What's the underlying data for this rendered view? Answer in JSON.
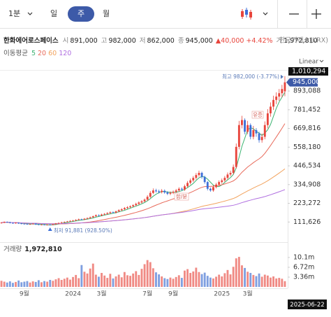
{
  "toolbar": {
    "intervals": [
      "1분",
      "일",
      "주",
      "월"
    ],
    "active": 2
  },
  "quote": {
    "name": "한화에어로스페이스",
    "items": [
      {
        "label": "시",
        "value": "891,000"
      },
      {
        "label": "고",
        "value": "982,000"
      },
      {
        "label": "저",
        "value": "862,000"
      },
      {
        "label": "종",
        "value": "945,000"
      }
    ],
    "change": "▲40,000",
    "change_pct": "+4.42%",
    "volume_label": "거",
    "volume": "1,972,810",
    "exchange": "한국거래소(KRX)"
  },
  "scale_mode": "Linear",
  "chart_data": {
    "type": "candlestick",
    "categories": [
      null,
      null,
      null,
      null,
      null,
      null,
      null,
      null,
      "9월",
      null,
      null,
      null,
      null,
      null,
      null,
      null,
      null,
      null,
      null,
      null,
      null,
      null,
      null,
      null,
      null,
      "2024",
      null,
      null,
      null,
      null,
      null,
      null,
      null,
      null,
      null,
      "3월",
      null,
      null,
      null,
      null,
      null,
      null,
      null,
      null,
      null,
      null,
      null,
      null,
      null,
      null,
      null,
      "7월",
      null,
      null,
      null,
      null,
      null,
      null,
      null,
      null,
      "9월",
      null,
      null,
      null,
      null,
      null,
      null,
      null,
      null,
      null,
      null,
      null,
      null,
      null,
      null,
      null,
      null,
      "2025",
      null,
      null,
      null,
      null,
      null,
      null,
      null,
      null,
      "3월",
      null,
      null,
      null,
      null,
      null,
      null,
      null,
      null,
      null,
      null,
      null,
      null,
      null
    ],
    "open": [
      105000,
      108000,
      112000,
      110000,
      106000,
      104000,
      107000,
      103000,
      101000,
      100000,
      98000,
      99000,
      102000,
      97000,
      95000,
      96000,
      93000,
      95000,
      94000,
      98000,
      103000,
      106000,
      110000,
      112000,
      115000,
      118000,
      120000,
      124000,
      128000,
      126000,
      131000,
      135000,
      140000,
      146000,
      152000,
      150000,
      156000,
      160000,
      165000,
      170000,
      168000,
      175000,
      182000,
      188000,
      195000,
      200000,
      205000,
      212000,
      220000,
      228000,
      235000,
      245000,
      262000,
      285000,
      300000,
      295000,
      290000,
      298000,
      288000,
      280000,
      286000,
      292000,
      300000,
      310000,
      305000,
      325000,
      345000,
      360000,
      375000,
      392000,
      405000,
      380000,
      350000,
      310000,
      300000,
      320000,
      335000,
      350000,
      360000,
      375000,
      395000,
      405000,
      440000,
      560000,
      690000,
      720000,
      650000,
      690000,
      620000,
      660000,
      640000,
      600000,
      620000,
      690000,
      760000,
      800000,
      840000,
      860000,
      880000,
      891000
    ],
    "high": [
      111000,
      115000,
      115000,
      113000,
      109000,
      110000,
      110000,
      106000,
      104000,
      103000,
      102000,
      105000,
      105000,
      100000,
      99000,
      99000,
      98000,
      98000,
      101000,
      106000,
      109000,
      113000,
      115000,
      118000,
      122000,
      124000,
      128000,
      132000,
      132000,
      135000,
      139000,
      144000,
      150000,
      157000,
      157000,
      161000,
      165000,
      170000,
      175000,
      175000,
      180000,
      188000,
      194000,
      201000,
      206000,
      211000,
      218000,
      227000,
      235000,
      242000,
      252000,
      272000,
      296000,
      312000,
      310000,
      305000,
      308000,
      306000,
      296000,
      294000,
      300000,
      309000,
      319000,
      318000,
      335000,
      356000,
      371000,
      386000,
      404000,
      418000,
      412000,
      388000,
      356000,
      318000,
      330000,
      345000,
      360000,
      371000,
      386000,
      407000,
      418000,
      455000,
      580000,
      715000,
      745000,
      730000,
      715000,
      700000,
      685000,
      672000,
      650000,
      640000,
      712000,
      785000,
      825000,
      865000,
      885000,
      905000,
      930000,
      982000
    ],
    "low": [
      102000,
      105000,
      107000,
      103000,
      101000,
      101000,
      100000,
      98000,
      97000,
      95000,
      95000,
      96000,
      94000,
      93000,
      93000,
      92500,
      92400,
      91881,
      92000,
      95000,
      100000,
      103000,
      107000,
      109000,
      112000,
      115000,
      117000,
      121000,
      123000,
      123000,
      127000,
      131000,
      136000,
      142000,
      146000,
      146000,
      152000,
      156000,
      160000,
      163000,
      163000,
      170000,
      177000,
      183000,
      190000,
      195000,
      200000,
      206000,
      214000,
      222000,
      229000,
      238000,
      255000,
      278000,
      287000,
      282000,
      282000,
      280000,
      272000,
      272000,
      278000,
      284000,
      292000,
      297000,
      297000,
      316000,
      336000,
      350000,
      365000,
      382000,
      370000,
      340000,
      300000,
      292000,
      292000,
      312000,
      326000,
      340000,
      350000,
      365000,
      385000,
      395000,
      430000,
      545000,
      670000,
      635000,
      635000,
      605000,
      605000,
      620000,
      585000,
      585000,
      605000,
      670000,
      740000,
      780000,
      815000,
      835000,
      855000,
      862000
    ],
    "close": [
      108000,
      112000,
      110000,
      106000,
      104000,
      107000,
      103000,
      101000,
      100000,
      98000,
      99000,
      102000,
      97000,
      95000,
      96000,
      93000,
      95000,
      94000,
      98000,
      103000,
      106000,
      110000,
      112000,
      115000,
      118000,
      120000,
      124000,
      128000,
      126000,
      131000,
      135000,
      140000,
      146000,
      152000,
      150000,
      156000,
      160000,
      165000,
      170000,
      168000,
      175000,
      182000,
      188000,
      195000,
      200000,
      205000,
      212000,
      220000,
      228000,
      235000,
      245000,
      262000,
      285000,
      300000,
      295000,
      290000,
      298000,
      288000,
      280000,
      286000,
      292000,
      300000,
      310000,
      305000,
      325000,
      345000,
      360000,
      375000,
      392000,
      405000,
      380000,
      350000,
      310000,
      300000,
      320000,
      335000,
      350000,
      360000,
      375000,
      395000,
      405000,
      440000,
      560000,
      690000,
      720000,
      650000,
      690000,
      620000,
      660000,
      640000,
      600000,
      620000,
      690000,
      760000,
      800000,
      840000,
      860000,
      880000,
      905000,
      945000
    ],
    "up_color": "#e8453c",
    "down_color": "#3d6fd8",
    "ylim": [
      0,
      1010294
    ],
    "yticks": [
      {
        "value": 111626,
        "label": "111,626"
      },
      {
        "value": 223272,
        "label": "223,272"
      },
      {
        "value": 334908,
        "label": "334,908"
      },
      {
        "value": 446534,
        "label": "446,534"
      },
      {
        "value": 558180,
        "label": "558,180"
      },
      {
        "value": 669816,
        "label": "669,816"
      },
      {
        "value": 781452,
        "label": "781,452"
      },
      {
        "value": 893088,
        "label": "893,088"
      }
    ],
    "grid": false,
    "moving_averages": {
      "title": "이동평균",
      "lines": [
        {
          "period": 5,
          "color": "#3cb371"
        },
        {
          "period": 20,
          "color": "#e86a5a"
        },
        {
          "period": 60,
          "color": "#f2a35e"
        },
        {
          "period": 120,
          "color": "#b06fe0"
        }
      ]
    },
    "volume": {
      "title": "거래량",
      "value_label": "1,972,810",
      "values": [
        2100000,
        1800000,
        1500000,
        1900000,
        1400000,
        1700000,
        2200000,
        1600000,
        1800000,
        2000000,
        1500000,
        1900000,
        1700000,
        2300000,
        1600000,
        2000000,
        1800000,
        2400000,
        2100000,
        2600000,
        3000000,
        2400000,
        2800000,
        3200000,
        2500000,
        3400000,
        4100000,
        3000000,
        7500000,
        5200000,
        4600000,
        6300000,
        8000000,
        4200000,
        3500000,
        4800000,
        3900000,
        3100000,
        4500000,
        2900000,
        3600000,
        4200000,
        3300000,
        5100000,
        4000000,
        3800000,
        4600000,
        5400000,
        4100000,
        6200000,
        7800000,
        9200000,
        8500000,
        6400000,
        5000000,
        4300000,
        3600000,
        3000000,
        2700000,
        3200000,
        2800000,
        3400000,
        4000000,
        3100000,
        5600000,
        6100000,
        4800000,
        5300000,
        6600000,
        5100000,
        4400000,
        4900000,
        3800000,
        3200000,
        2900000,
        3500000,
        4200000,
        3600000,
        4700000,
        5800000,
        4300000,
        6900000,
        9800000,
        10300000,
        7400000,
        6500000,
        5200000,
        4800000,
        4100000,
        3700000,
        4600000,
        3500000,
        4200000,
        3900000,
        3200000,
        3600000,
        2900000,
        3100000,
        2800000,
        1972810
      ],
      "ylim": [
        0,
        14400000
      ],
      "yticks": [
        {
          "value": 3360000,
          "label": "3.36m"
        },
        {
          "value": 6720000,
          "label": "6.72m"
        },
        {
          "value": 10100000,
          "label": "10.1m"
        }
      ]
    },
    "annotations": [
      "최고 982,000 (-3.77%)",
      "최저 91,881 (928.50%)",
      "합/분",
      "유증"
    ],
    "last_price_label": {
      "value": 945000,
      "label": "945,000"
    },
    "cursor_price": {
      "value": 1010294,
      "label": "1,010,294"
    },
    "cursor_date": "2025-06-22"
  }
}
